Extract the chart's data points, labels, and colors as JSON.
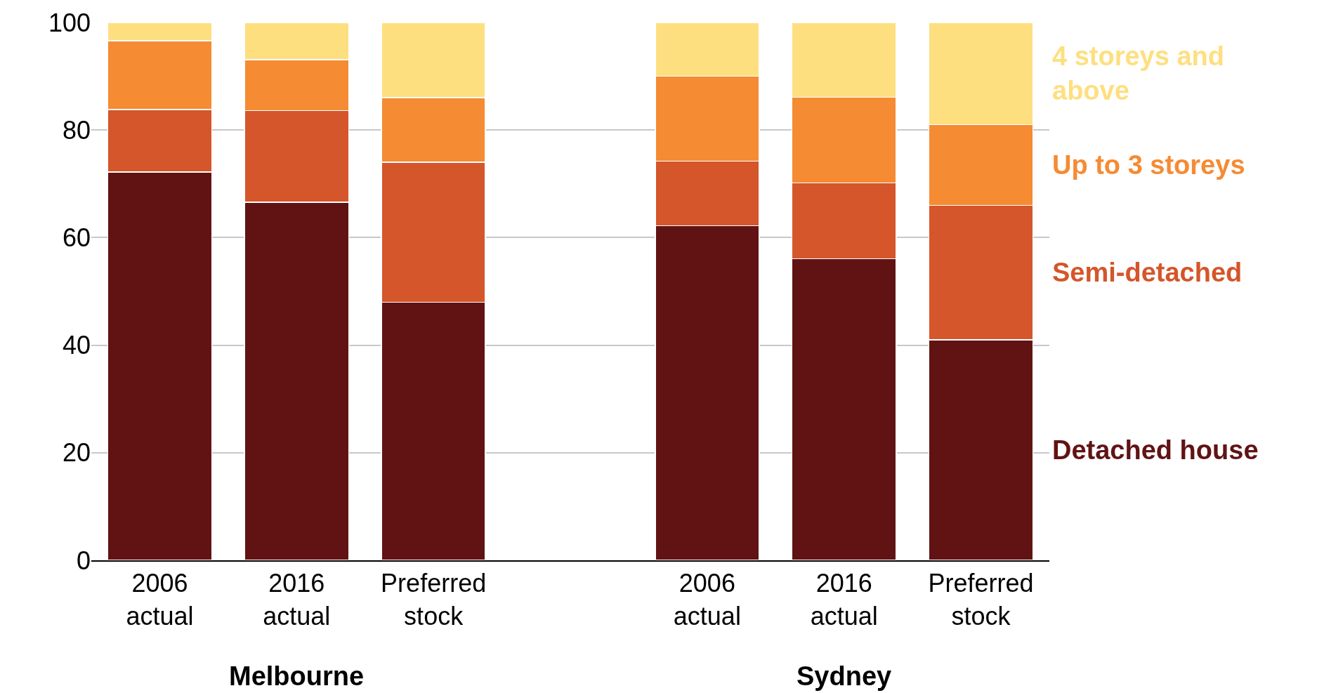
{
  "chart_data": {
    "type": "bar",
    "stacked": true,
    "categories": [
      "2006 actual",
      "2016 actual",
      "Preferred stock",
      null,
      "2006 actual",
      "2016 actual",
      "Preferred stock"
    ],
    "series": [
      {
        "name": "Detached house",
        "color": "#611314",
        "values": [
          72.2,
          66.6,
          48,
          null,
          62.2,
          56.1,
          41
        ]
      },
      {
        "name": "Semi-detached",
        "color": "#d4562a",
        "values": [
          11.6,
          17.0,
          26,
          null,
          12.0,
          14.1,
          25
        ]
      },
      {
        "name": "Up to 3 storeys",
        "color": "#f58b33",
        "values": [
          12.8,
          9.5,
          12,
          null,
          15.8,
          15.9,
          15
        ]
      },
      {
        "name": "4 storeys and above",
        "color": "#fedf80",
        "values": [
          3.4,
          6.9,
          14,
          null,
          10.0,
          13.9,
          19
        ]
      }
    ],
    "ylim": [
      0,
      100
    ],
    "yticks": [
      0,
      20,
      40,
      60,
      80,
      100
    ],
    "grid": "y",
    "legend": "right",
    "annotations": [
      "Melbourne",
      "Sydney"
    ]
  }
}
